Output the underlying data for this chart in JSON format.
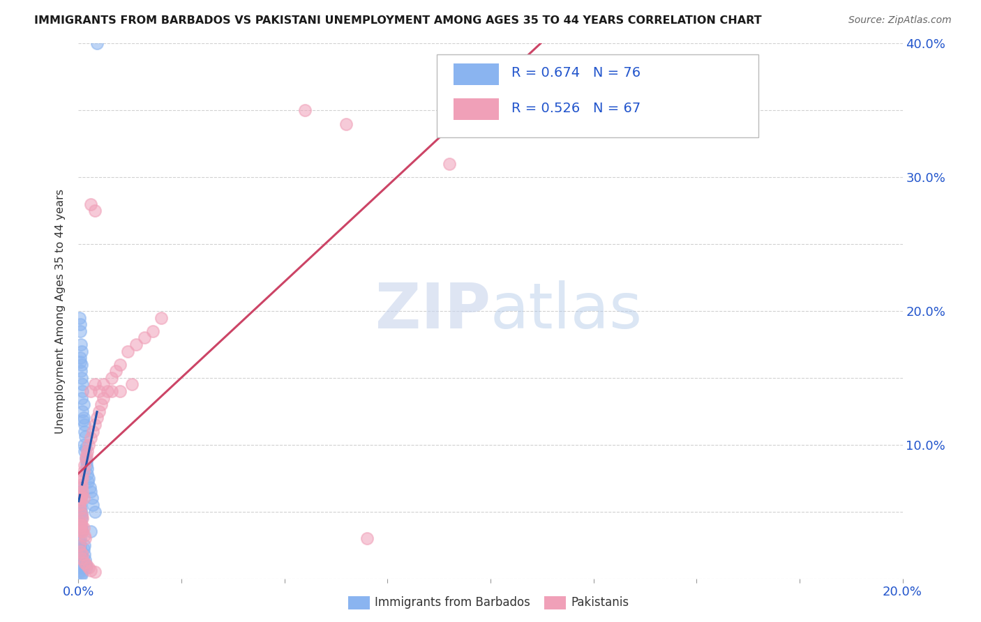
{
  "title": "IMMIGRANTS FROM BARBADOS VS PAKISTANI UNEMPLOYMENT AMONG AGES 35 TO 44 YEARS CORRELATION CHART",
  "source": "Source: ZipAtlas.com",
  "ylabel": "Unemployment Among Ages 35 to 44 years",
  "xlim": [
    0.0,
    0.2
  ],
  "ylim": [
    0.0,
    0.4
  ],
  "blue_color": "#8ab4f0",
  "pink_color": "#f0a0b8",
  "blue_line_color": "#2255aa",
  "pink_line_color": "#cc4466",
  "legend_text_color": "#2255cc",
  "watermark_text": "ZIPatlas",
  "watermark_color": "#c5d5ee",
  "blue_r": 0.674,
  "blue_n": 76,
  "pink_r": 0.526,
  "pink_n": 67,
  "grid_color": "#cccccc",
  "axis_tick_color": "#2255cc",
  "background": "#ffffff",
  "blue_scatter_x": [
    0.0045,
    0.0003,
    0.0005,
    0.0004,
    0.0006,
    0.0007,
    0.0004,
    0.0005,
    0.0008,
    0.0006,
    0.0007,
    0.0009,
    0.001,
    0.0008,
    0.0012,
    0.001,
    0.0013,
    0.0011,
    0.0015,
    0.0014,
    0.0016,
    0.0013,
    0.0018,
    0.0015,
    0.0017,
    0.002,
    0.0019,
    0.0022,
    0.0021,
    0.0025,
    0.0023,
    0.0028,
    0.003,
    0.0033,
    0.0035,
    0.004,
    0.0003,
    0.0004,
    0.0003,
    0.0005,
    0.0004,
    0.0006,
    0.0005,
    0.0007,
    0.0006,
    0.0008,
    0.0003,
    0.0004,
    0.0005,
    0.0006,
    0.0007,
    0.0004,
    0.0003,
    0.0005,
    0.0004,
    0.0006,
    0.0008,
    0.0007,
    0.0009,
    0.001,
    0.0003,
    0.0004,
    0.0005,
    0.0006,
    0.0007,
    0.0008,
    0.0003,
    0.0005,
    0.0004,
    0.0012,
    0.0014,
    0.0016,
    0.0018,
    0.002,
    0.0015,
    0.003
  ],
  "blue_scatter_y": [
    0.4,
    0.195,
    0.19,
    0.185,
    0.175,
    0.17,
    0.165,
    0.162,
    0.16,
    0.155,
    0.15,
    0.145,
    0.14,
    0.135,
    0.13,
    0.125,
    0.12,
    0.118,
    0.115,
    0.11,
    0.106,
    0.1,
    0.098,
    0.095,
    0.09,
    0.088,
    0.085,
    0.082,
    0.078,
    0.075,
    0.072,
    0.068,
    0.065,
    0.06,
    0.055,
    0.05,
    0.065,
    0.068,
    0.062,
    0.058,
    0.06,
    0.052,
    0.055,
    0.048,
    0.05,
    0.045,
    0.04,
    0.038,
    0.042,
    0.035,
    0.038,
    0.03,
    0.028,
    0.025,
    0.022,
    0.018,
    0.015,
    0.012,
    0.01,
    0.008,
    0.01,
    0.008,
    0.006,
    0.005,
    0.004,
    0.003,
    0.015,
    0.012,
    0.02,
    0.022,
    0.018,
    0.014,
    0.01,
    0.008,
    0.025,
    0.035
  ],
  "pink_scatter_x": [
    0.0005,
    0.0008,
    0.001,
    0.0012,
    0.0015,
    0.0018,
    0.002,
    0.0022,
    0.0025,
    0.003,
    0.0035,
    0.004,
    0.0045,
    0.005,
    0.0055,
    0.006,
    0.007,
    0.008,
    0.009,
    0.01,
    0.012,
    0.014,
    0.016,
    0.018,
    0.02,
    0.0003,
    0.0004,
    0.0005,
    0.0006,
    0.0007,
    0.0008,
    0.0009,
    0.0004,
    0.0005,
    0.0006,
    0.0007,
    0.0008,
    0.001,
    0.0012,
    0.0014,
    0.0016,
    0.0003,
    0.0005,
    0.0007,
    0.001,
    0.0015,
    0.002,
    0.0025,
    0.003,
    0.004,
    0.0006,
    0.0008,
    0.001,
    0.0012,
    0.003,
    0.004,
    0.005,
    0.006,
    0.008,
    0.01,
    0.013,
    0.003,
    0.004,
    0.055,
    0.065,
    0.09,
    0.07
  ],
  "pink_scatter_y": [
    0.06,
    0.07,
    0.075,
    0.08,
    0.085,
    0.09,
    0.092,
    0.095,
    0.1,
    0.105,
    0.11,
    0.115,
    0.12,
    0.125,
    0.13,
    0.135,
    0.14,
    0.15,
    0.155,
    0.16,
    0.17,
    0.175,
    0.18,
    0.185,
    0.195,
    0.055,
    0.058,
    0.052,
    0.06,
    0.048,
    0.062,
    0.045,
    0.04,
    0.038,
    0.042,
    0.035,
    0.04,
    0.035,
    0.038,
    0.032,
    0.03,
    0.025,
    0.02,
    0.015,
    0.018,
    0.012,
    0.01,
    0.008,
    0.006,
    0.005,
    0.075,
    0.068,
    0.065,
    0.06,
    0.14,
    0.145,
    0.14,
    0.145,
    0.14,
    0.14,
    0.145,
    0.28,
    0.275,
    0.35,
    0.34,
    0.31,
    0.03
  ]
}
